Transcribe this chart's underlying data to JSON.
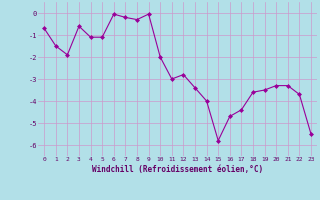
{
  "x": [
    0,
    1,
    2,
    3,
    4,
    5,
    6,
    7,
    8,
    9,
    10,
    11,
    12,
    13,
    14,
    15,
    16,
    17,
    18,
    19,
    20,
    21,
    22,
    23
  ],
  "y": [
    -0.7,
    -1.5,
    -1.9,
    -0.6,
    -1.1,
    -1.1,
    -0.05,
    -0.2,
    -0.3,
    -0.05,
    -2.0,
    -3.0,
    -2.8,
    -3.4,
    -4.0,
    -5.8,
    -4.7,
    -4.4,
    -3.6,
    -3.5,
    -3.3,
    -3.3,
    -3.7,
    -5.5
  ],
  "line_color": "#990099",
  "marker": "D",
  "marker_size": 2.0,
  "bg_color": "#b2e0e8",
  "grid_color": "#cc99cc",
  "xlabel": "Windchill (Refroidissement éolien,°C)",
  "xlabel_color": "#660066",
  "tick_color": "#660066",
  "ylim": [
    -6.5,
    0.5
  ],
  "xlim": [
    -0.5,
    23.5
  ],
  "yticks": [
    0,
    -1,
    -2,
    -3,
    -4,
    -5,
    -6
  ],
  "xticks": [
    0,
    1,
    2,
    3,
    4,
    5,
    6,
    7,
    8,
    9,
    10,
    11,
    12,
    13,
    14,
    15,
    16,
    17,
    18,
    19,
    20,
    21,
    22,
    23
  ]
}
